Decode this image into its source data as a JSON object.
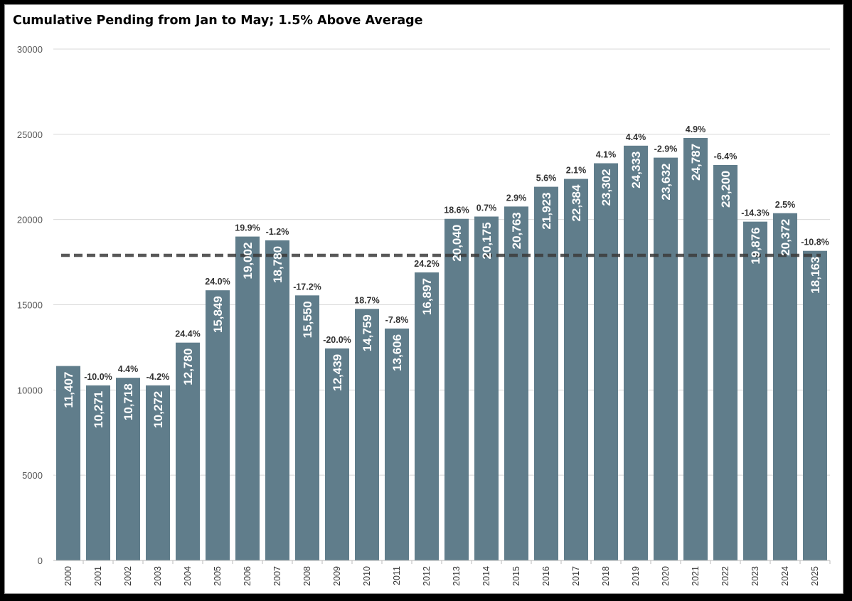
{
  "chart_data": {
    "type": "bar",
    "title": "Cumulative Pending from Jan to May; 1.5% Above Average",
    "xlabel": "",
    "ylabel": "",
    "ylim": [
      0,
      30000
    ],
    "yticks": [
      0,
      5000,
      10000,
      15000,
      20000,
      25000,
      30000
    ],
    "grid": true,
    "categories": [
      "2000",
      "2001",
      "2002",
      "2003",
      "2004",
      "2005",
      "2006",
      "2007",
      "2008",
      "2009",
      "2010",
      "2011",
      "2012",
      "2013",
      "2014",
      "2015",
      "2016",
      "2017",
      "2018",
      "2019",
      "2020",
      "2021",
      "2022",
      "2023",
      "2024",
      "2025"
    ],
    "values": [
      11407,
      10271,
      10718,
      10272,
      12780,
      15849,
      19002,
      18780,
      15550,
      12439,
      14759,
      13606,
      16897,
      20040,
      20175,
      20763,
      21923,
      22384,
      23302,
      24333,
      23632,
      24787,
      23200,
      19876,
      20372,
      18163
    ],
    "value_labels": [
      "11,407",
      "10,271",
      "10,718",
      "10,272",
      "12,780",
      "15,849",
      "19,002",
      "18,780",
      "15,550",
      "12,439",
      "14,759",
      "13,606",
      "16,897",
      "20,040",
      "20,175",
      "20,763",
      "21,923",
      "22,384",
      "23,302",
      "24,333",
      "23,632",
      "24,787",
      "23,200",
      "19,876",
      "20,372",
      "18,163"
    ],
    "pct_labels": [
      "",
      "-10.0%",
      "4.4%",
      "-4.2%",
      "24.4%",
      "24.0%",
      "19.9%",
      "-1.2%",
      "-17.2%",
      "-20.0%",
      "18.7%",
      "-7.8%",
      "24.2%",
      "18.6%",
      "0.7%",
      "2.9%",
      "5.6%",
      "2.1%",
      "4.1%",
      "4.4%",
      "-2.9%",
      "4.9%",
      "-6.4%",
      "-14.3%",
      "2.5%",
      "-10.8%"
    ],
    "average_line": 17900,
    "colors": {
      "bar": "#607d8b",
      "average_line": "#3c3c3c",
      "grid": "#d9d9d9"
    }
  }
}
